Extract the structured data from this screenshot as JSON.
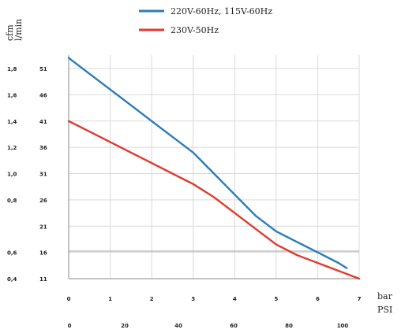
{
  "chart_data": {
    "type": "line",
    "title": "",
    "legend_position": "top",
    "grid": true,
    "y_units": {
      "primary": "cfm",
      "secondary": "l/min"
    },
    "x_units": {
      "primary": "bar",
      "secondary": "PSI"
    },
    "y_primary": {
      "ticks": [
        "1,8",
        "1,6",
        "1,4",
        "1,2",
        "1,0",
        "0,8",
        "0,6",
        "0,4"
      ],
      "ylim": [
        0.4,
        1.8
      ]
    },
    "y_secondary": {
      "ticks": [
        "51",
        "46",
        "41",
        "36",
        "31",
        "26",
        "21",
        "16",
        "11"
      ],
      "ylim": [
        11,
        51
      ]
    },
    "x_primary": {
      "ticks": [
        "0",
        "1",
        "2",
        "3",
        "4",
        "5",
        "6",
        "7"
      ],
      "xlim": [
        0,
        7
      ]
    },
    "x_secondary": {
      "ticks": [
        "0",
        "20",
        "40",
        "60",
        "80",
        "100"
      ]
    },
    "series": [
      {
        "name": "220V-60Hz,  115V-60Hz",
        "color": "#2b7bbd",
        "x": [
          0,
          0.5,
          1,
          1.5,
          2,
          2.5,
          3,
          3.5,
          4,
          4.5,
          5,
          5.5,
          6,
          6.5,
          6.7
        ],
        "y": [
          53,
          50,
          47,
          44,
          41,
          38,
          35,
          31,
          27,
          23,
          20,
          18,
          16,
          14,
          13
        ]
      },
      {
        "name": "230V-50Hz",
        "color": "#e03a2f",
        "x": [
          0,
          0.5,
          1,
          1.5,
          2,
          2.5,
          3,
          3.5,
          4,
          4.5,
          5,
          5.5,
          6,
          6.5,
          7
        ],
        "y": [
          41,
          39,
          37,
          35,
          33,
          31,
          29,
          26.5,
          23.5,
          20.5,
          17.5,
          15.5,
          14,
          12.5,
          11
        ]
      }
    ]
  }
}
